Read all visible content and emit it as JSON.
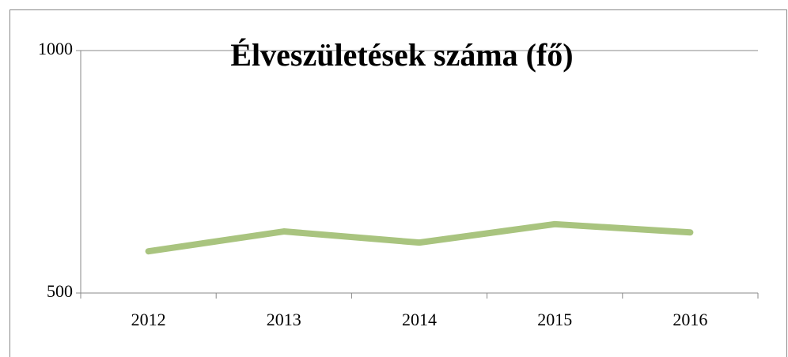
{
  "chart_data": {
    "type": "line",
    "title": "Élveszületések száma (fő)",
    "categories": [
      "2012",
      "2013",
      "2014",
      "2015",
      "2016"
    ],
    "values": [
      586,
      627,
      604,
      642,
      625
    ],
    "color": "#a9c47f",
    "ylim": [
      500,
      1000
    ],
    "yticks": [
      500,
      1000
    ],
    "grid": true
  }
}
